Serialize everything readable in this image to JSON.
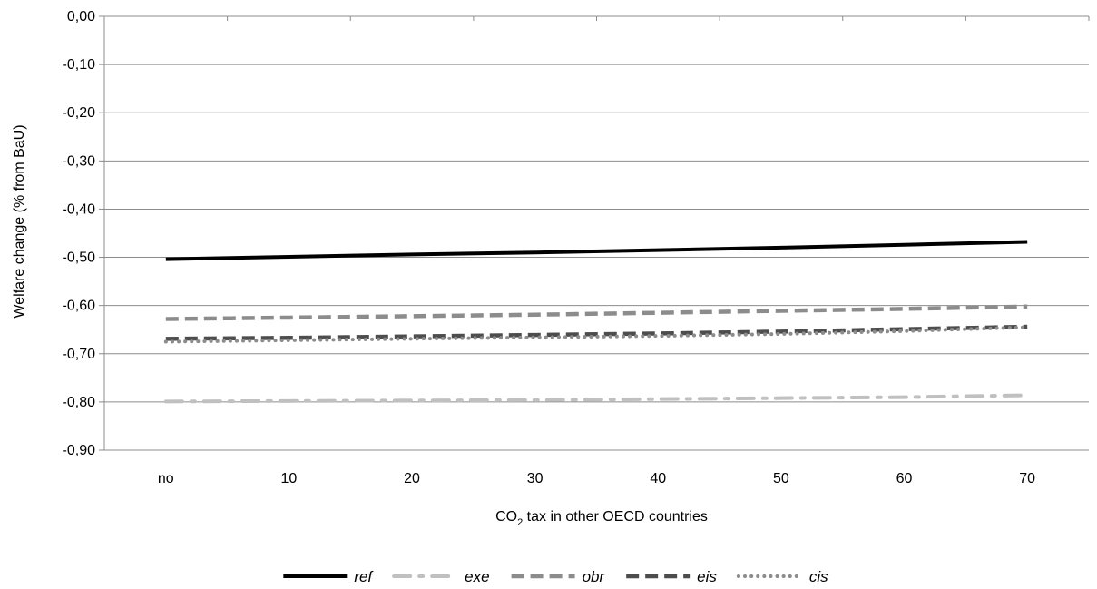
{
  "chart_data": {
    "type": "line",
    "categories": [
      "no",
      "10",
      "20",
      "30",
      "40",
      "50",
      "60",
      "70"
    ],
    "xlabel": {
      "main": "CO",
      "sub": "2",
      "rest": " tax in other OECD countries"
    },
    "ylabel": "Welfare change  (% from BaU)",
    "ylim": [
      -0.9,
      0.0
    ],
    "yticks": [
      "0,00",
      "-0,10",
      "-0,20",
      "-0,30",
      "-0,40",
      "-0,50",
      "-0,60",
      "-0,70",
      "-0,80",
      "-0,90"
    ],
    "grid": true,
    "legend_position": "bottom",
    "series": [
      {
        "name": "ref",
        "values": [
          -0.504,
          -0.499,
          -0.494,
          -0.49,
          -0.485,
          -0.48,
          -0.474,
          -0.468
        ],
        "color": "#000000",
        "style": "solid"
      },
      {
        "name": "exe",
        "values": [
          -0.799,
          -0.798,
          -0.797,
          -0.796,
          -0.794,
          -0.792,
          -0.79,
          -0.786
        ],
        "color": "#c0c0c0",
        "style": "dash-dot"
      },
      {
        "name": "obr",
        "values": [
          -0.628,
          -0.625,
          -0.622,
          -0.619,
          -0.615,
          -0.611,
          -0.607,
          -0.602
        ],
        "color": "#8c8c8c",
        "style": "dashed"
      },
      {
        "name": "eis",
        "values": [
          -0.669,
          -0.667,
          -0.664,
          -0.661,
          -0.658,
          -0.654,
          -0.649,
          -0.644
        ],
        "color": "#4d4d4d",
        "style": "dashed"
      },
      {
        "name": "cis",
        "values": [
          -0.675,
          -0.672,
          -0.669,
          -0.666,
          -0.663,
          -0.659,
          -0.653,
          -0.645
        ],
        "color": "#8c8c8c",
        "style": "dotted"
      }
    ]
  }
}
